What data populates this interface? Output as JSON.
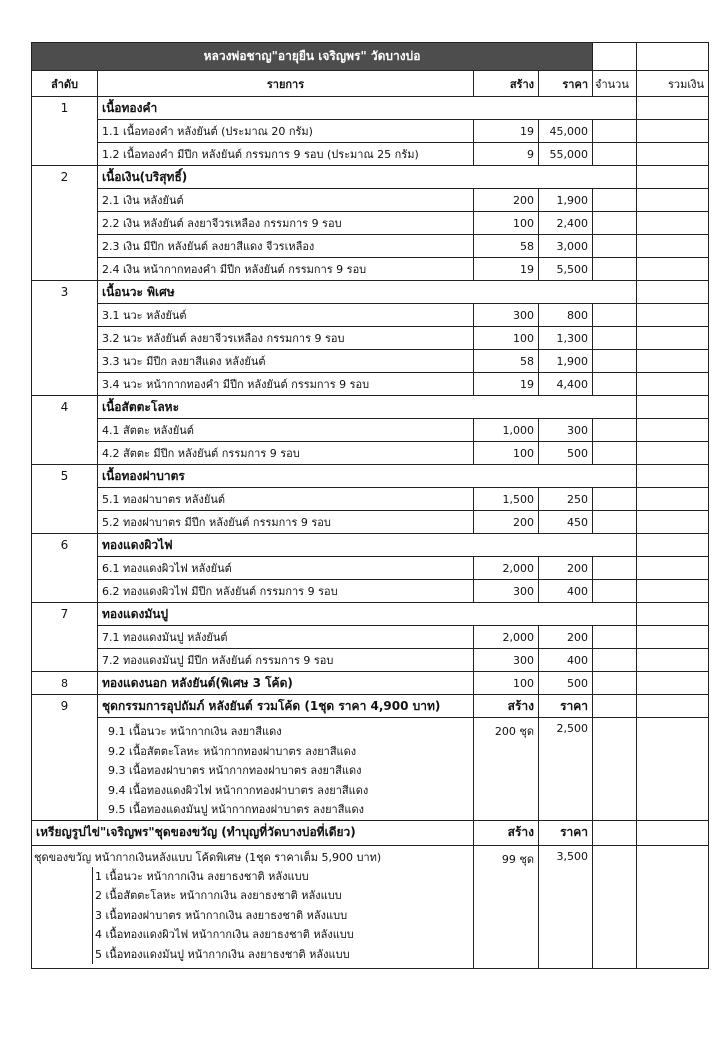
{
  "title": "หลวงพ่อชาญ\"อายุยืน เจริญพร\" วัดบางบ่อ",
  "headers": {
    "no": "ลำดับ",
    "item": "รายการ",
    "created": "สร้าง",
    "price": "ราคา",
    "qty": "จำนวน",
    "total": "รวมเงิน"
  },
  "sections": [
    {
      "no": "1",
      "title": "เนื้อทองคำ",
      "items": [
        {
          "name": "1.1 เนื้อทองคำ หลังยันต์ (ประมาณ 20 กรัม)",
          "created": "19",
          "price": "45,000"
        },
        {
          "name": "1.2 เนื้อทองคำ มีปีก หลังยันต์ กรรมการ 9 รอบ (ประมาณ 25 กรัม)",
          "created": "9",
          "price": "55,000"
        }
      ]
    },
    {
      "no": "2",
      "title": "เนื้อเงิน(บริสุทธิ์)",
      "items": [
        {
          "name": "2.1 เงิน หลังยันต์",
          "created": "200",
          "price": "1,900"
        },
        {
          "name": "2.2 เงิน หลังยันต์ ลงยาจีวรเหลือง กรรมการ 9 รอบ",
          "created": "100",
          "price": "2,400"
        },
        {
          "name": "2.3 เงิน มีปีก หลังยันต์ ลงยาสีแดง จีวรเหลือง",
          "created": "58",
          "price": "3,000"
        },
        {
          "name": "2.4 เงิน หน้ากากทองคำ มีปีก หลังยันต์ กรรมการ 9 รอบ",
          "created": "19",
          "price": "5,500"
        }
      ]
    },
    {
      "no": "3",
      "title": "เนื้อนวะ พิเศษ",
      "items": [
        {
          "name": "3.1 นวะ หลังยันต์",
          "created": "300",
          "price": "800"
        },
        {
          "name": "3.2 นวะ หลังยันต์ ลงยาจีวรเหลือง กรรมการ 9 รอบ",
          "created": "100",
          "price": "1,300"
        },
        {
          "name": "3.3 นวะ มีปีก ลงยาสีแดง หลังยันต์",
          "created": "58",
          "price": "1,900"
        },
        {
          "name": "3.4 นวะ หน้ากากทองคำ มีปีก หลังยันต์ กรรมการ 9 รอบ",
          "created": "19",
          "price": "4,400"
        }
      ]
    },
    {
      "no": "4",
      "title": "เนื้อสัตตะโลหะ",
      "items": [
        {
          "name": "4.1 สัตตะ หลังยันต์",
          "created": "1,000",
          "price": "300"
        },
        {
          "name": "4.2 สัตตะ มีปีก หลังยันต์ กรรมการ 9  รอบ",
          "created": "100",
          "price": "500"
        }
      ]
    },
    {
      "no": "5",
      "title": "เนื้อทองฝาบาตร",
      "items": [
        {
          "name": "5.1 ทองฝาบาตร หลังยันต์",
          "created": "1,500",
          "price": "250"
        },
        {
          "name": "5.2 ทองฝาบาตร มีปีก หลังยันต์ กรรมการ 9  รอบ",
          "created": "200",
          "price": "450"
        }
      ]
    },
    {
      "no": "6",
      "title": "ทองแดงผิวไฟ",
      "items": [
        {
          "name": "6.1 ทองแดงผิวไฟ หลังยันต์",
          "created": "2,000",
          "price": "200"
        },
        {
          "name": "6.2 ทองแดงผิวไฟ มีปีก หลังยันต์ กรรมการ 9  รอบ",
          "created": "300",
          "price": "400"
        }
      ]
    },
    {
      "no": "7",
      "title": "ทองแดงมันปู",
      "items": [
        {
          "name": "7.1 ทองแดงมันปู หลังยันต์",
          "created": "2,000",
          "price": "200"
        },
        {
          "name": "7.2 ทองแดงมันปู มีปีก หลังยันต์ กรรมการ 9  รอบ",
          "created": "300",
          "price": "400"
        }
      ]
    }
  ],
  "row8": {
    "no": "8",
    "title": "ทองแดงนอก หลังยันต์(พิเศษ 3 โค้ด)",
    "created": "100",
    "price": "500"
  },
  "set9": {
    "no": "9",
    "title": "ชุดกรรมการอุปถัมภ์ หลังยันต์ รวมโค้ด (1ชุด ราคา 4,900 บาท)",
    "created_label": "สร้าง",
    "price_label": "ราคา",
    "created": "200 ชุด",
    "price": "2,500",
    "lines": [
      "9.1 เนื้อนวะ หน้ากากเงิน ลงยาสีแดง",
      "9.2 เนื้อสัตตะโลหะ หน้ากากทองฝาบาตร ลงยาสีแดง",
      "9.3 เนื้อทองฝาบาตร หน้ากากทองฝาบาตร ลงยาสีแดง",
      "9.4 เนื้อทองแดงผิวไฟ หน้ากากทองฝาบาตร ลงยาสีแดง",
      "9.5 เนื้อทองแดงมันปู หน้ากากทองฝาบาตร ลงยาสีแดง"
    ]
  },
  "medal": {
    "title": "เหรียญรูปไข่\"เจริญพร\"ชุดของขวัญ (ทำบุญที่วัดบางบ่อที่เดียว)",
    "created_label": "สร้าง",
    "price_label": "ราคา",
    "gift": "ชุดของขวัญ หน้ากากเงินหลังแบบ โค้ดพิเศษ (1ชุด ราคาเต็ม 5,900 บาท)",
    "created": "99 ชุด",
    "price": "3,500",
    "lines": [
      "1 เนื้อนวะ หน้ากากเงิน ลงยาธงชาติ หลังแบบ",
      "2 เนื้อสัตตะโลหะ หน้ากากเงิน ลงยาธงชาติ หลังแบบ",
      "3 เนื้อทองฝาบาตร หน้ากากเงิน ลงยาธงชาติ หลังแบบ",
      "4 เนื้อทองแดงผิวไฟ หน้ากากเงิน ลงยาธงชาติ หลังแบบ",
      "5 เนื้อทองแดงมันปู หน้ากากเงิน ลงยาธงชาติ หลังแบบ"
    ]
  }
}
